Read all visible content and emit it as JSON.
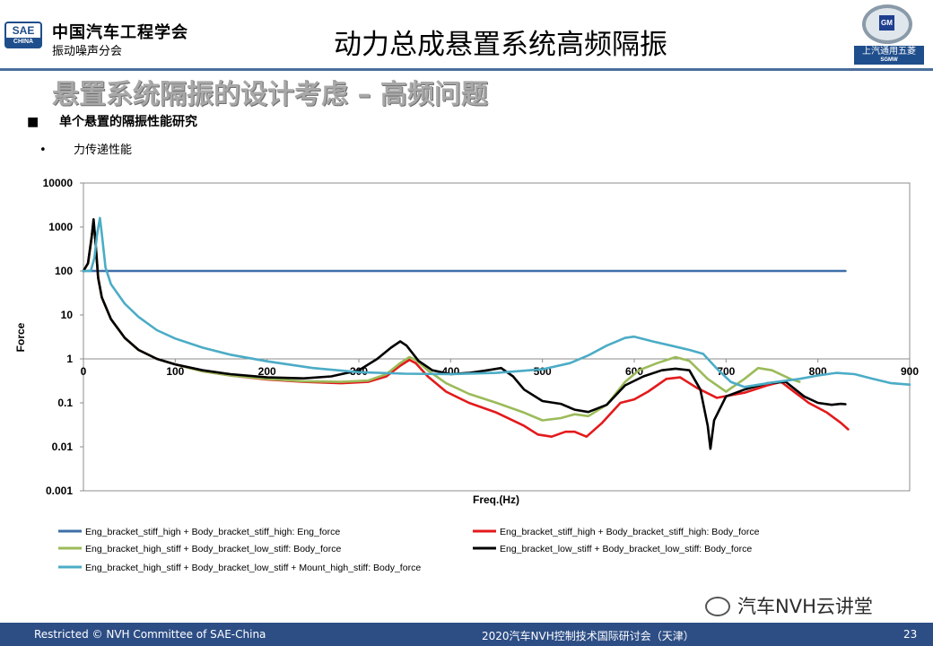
{
  "header": {
    "logo_top": "SAE",
    "logo_bottom": "CHINA",
    "org_name": "中国汽车工程学会",
    "org_subtitle": "振动噪声分会",
    "title": "动力总成悬置系统高频隔振",
    "partner_logo_gm": "GM",
    "partner_logo_cn": "上汽通用五菱",
    "partner_logo_en": "SGMW"
  },
  "section_heading": "悬置系统隔振的设计考虑 – 高频问题",
  "bullets": {
    "level1_mark": "■",
    "level1": "单个悬置的隔振性能研究",
    "level2_mark": "•",
    "level2": "力传递性能"
  },
  "chart_data": {
    "type": "line",
    "xlabel": "Freq.(Hz)",
    "ylabel": "Force",
    "xlim": [
      0,
      900
    ],
    "ylim": [
      0.001,
      10000
    ],
    "y_scale": "log",
    "x_ticks": [
      0,
      100,
      200,
      300,
      400,
      500,
      600,
      700,
      800,
      900
    ],
    "y_tick_labels": [
      "10000",
      "1000",
      "100",
      "10",
      "1",
      "0.1",
      "0.01",
      "0.001"
    ],
    "grid": false,
    "legend_position": "bottom",
    "series": [
      {
        "name": "Eng_bracket_stiff_high + Body_bracket_stiff_high: Eng_force",
        "color": "#3e6fa8",
        "points": [
          [
            0,
            100
          ],
          [
            15,
            100
          ],
          [
            830,
            100
          ]
        ]
      },
      {
        "name": "Eng_bracket_stiff_high + Body_bracket_stiff_high: Body_force",
        "color": "#e31a1c",
        "points": [
          [
            0,
            100
          ],
          [
            5,
            150
          ],
          [
            9,
            600
          ],
          [
            11,
            1300
          ],
          [
            13,
            500
          ],
          [
            16,
            70
          ],
          [
            20,
            25
          ],
          [
            30,
            8
          ],
          [
            45,
            3
          ],
          [
            60,
            1.6
          ],
          [
            80,
            1.0
          ],
          [
            100,
            0.75
          ],
          [
            130,
            0.52
          ],
          [
            160,
            0.42
          ],
          [
            200,
            0.34
          ],
          [
            240,
            0.3
          ],
          [
            280,
            0.28
          ],
          [
            310,
            0.3
          ],
          [
            330,
            0.4
          ],
          [
            345,
            0.7
          ],
          [
            355,
            0.95
          ],
          [
            362,
            0.8
          ],
          [
            375,
            0.4
          ],
          [
            395,
            0.18
          ],
          [
            420,
            0.1
          ],
          [
            450,
            0.06
          ],
          [
            480,
            0.03
          ],
          [
            495,
            0.019
          ],
          [
            510,
            0.017
          ],
          [
            525,
            0.022
          ],
          [
            535,
            0.022
          ],
          [
            548,
            0.017
          ],
          [
            565,
            0.035
          ],
          [
            585,
            0.1
          ],
          [
            600,
            0.12
          ],
          [
            615,
            0.18
          ],
          [
            635,
            0.35
          ],
          [
            650,
            0.38
          ],
          [
            668,
            0.22
          ],
          [
            690,
            0.13
          ],
          [
            720,
            0.17
          ],
          [
            745,
            0.25
          ],
          [
            760,
            0.3
          ],
          [
            790,
            0.1
          ],
          [
            810,
            0.06
          ],
          [
            825,
            0.035
          ],
          [
            833,
            0.025
          ]
        ]
      },
      {
        "name": "Eng_bracket_high_stiff + Body_bracket_low_stiff: Body_force",
        "color": "#9bbb59",
        "points": [
          [
            0,
            100
          ],
          [
            5,
            150
          ],
          [
            9,
            600
          ],
          [
            11,
            1300
          ],
          [
            13,
            500
          ],
          [
            16,
            70
          ],
          [
            20,
            25
          ],
          [
            30,
            8
          ],
          [
            45,
            3
          ],
          [
            60,
            1.6
          ],
          [
            80,
            1.0
          ],
          [
            100,
            0.75
          ],
          [
            130,
            0.52
          ],
          [
            160,
            0.42
          ],
          [
            200,
            0.35
          ],
          [
            240,
            0.31
          ],
          [
            280,
            0.3
          ],
          [
            310,
            0.32
          ],
          [
            330,
            0.45
          ],
          [
            345,
            0.8
          ],
          [
            355,
            1.1
          ],
          [
            362,
            0.95
          ],
          [
            375,
            0.55
          ],
          [
            395,
            0.28
          ],
          [
            420,
            0.16
          ],
          [
            450,
            0.1
          ],
          [
            480,
            0.06
          ],
          [
            500,
            0.04
          ],
          [
            520,
            0.045
          ],
          [
            535,
            0.055
          ],
          [
            550,
            0.05
          ],
          [
            570,
            0.09
          ],
          [
            590,
            0.3
          ],
          [
            605,
            0.55
          ],
          [
            625,
            0.8
          ],
          [
            645,
            1.1
          ],
          [
            660,
            0.9
          ],
          [
            680,
            0.35
          ],
          [
            700,
            0.18
          ],
          [
            720,
            0.35
          ],
          [
            735,
            0.62
          ],
          [
            750,
            0.55
          ],
          [
            770,
            0.35
          ],
          [
            780,
            0.3
          ]
        ]
      },
      {
        "name": "Eng_bracket_low_stiff + Body_bracket_low_stiff: Body_force",
        "color": "#000000",
        "points": [
          [
            0,
            100
          ],
          [
            5,
            150
          ],
          [
            9,
            600
          ],
          [
            11,
            1500
          ],
          [
            13,
            500
          ],
          [
            16,
            70
          ],
          [
            20,
            25
          ],
          [
            30,
            8
          ],
          [
            45,
            3
          ],
          [
            60,
            1.6
          ],
          [
            80,
            1.0
          ],
          [
            100,
            0.75
          ],
          [
            130,
            0.55
          ],
          [
            160,
            0.45
          ],
          [
            200,
            0.38
          ],
          [
            240,
            0.36
          ],
          [
            270,
            0.4
          ],
          [
            300,
            0.55
          ],
          [
            320,
            1.0
          ],
          [
            335,
            1.8
          ],
          [
            345,
            2.5
          ],
          [
            352,
            2.0
          ],
          [
            365,
            0.9
          ],
          [
            380,
            0.55
          ],
          [
            400,
            0.45
          ],
          [
            420,
            0.48
          ],
          [
            440,
            0.55
          ],
          [
            455,
            0.62
          ],
          [
            468,
            0.4
          ],
          [
            480,
            0.2
          ],
          [
            500,
            0.11
          ],
          [
            520,
            0.095
          ],
          [
            535,
            0.07
          ],
          [
            550,
            0.062
          ],
          [
            570,
            0.09
          ],
          [
            590,
            0.25
          ],
          [
            610,
            0.4
          ],
          [
            630,
            0.55
          ],
          [
            645,
            0.6
          ],
          [
            660,
            0.55
          ],
          [
            672,
            0.2
          ],
          [
            680,
            0.03
          ],
          [
            683,
            0.009
          ],
          [
            687,
            0.04
          ],
          [
            700,
            0.14
          ],
          [
            720,
            0.2
          ],
          [
            745,
            0.28
          ],
          [
            765,
            0.3
          ],
          [
            785,
            0.14
          ],
          [
            800,
            0.1
          ],
          [
            815,
            0.09
          ],
          [
            825,
            0.095
          ],
          [
            830,
            0.093
          ]
        ]
      },
      {
        "name": "Eng_bracket_high_stiff + Body_bracket_low_stiff + Mount_high_stiff: Body_force",
        "color": "#4bacc6",
        "points": [
          [
            0,
            100
          ],
          [
            8,
            100
          ],
          [
            12,
            200
          ],
          [
            15,
            700
          ],
          [
            18,
            1600
          ],
          [
            20,
            700
          ],
          [
            24,
            120
          ],
          [
            30,
            50
          ],
          [
            45,
            18
          ],
          [
            60,
            9
          ],
          [
            80,
            4.5
          ],
          [
            100,
            2.9
          ],
          [
            130,
            1.8
          ],
          [
            160,
            1.25
          ],
          [
            200,
            0.88
          ],
          [
            250,
            0.62
          ],
          [
            300,
            0.5
          ],
          [
            350,
            0.46
          ],
          [
            400,
            0.45
          ],
          [
            450,
            0.48
          ],
          [
            500,
            0.58
          ],
          [
            530,
            0.8
          ],
          [
            550,
            1.2
          ],
          [
            570,
            2.0
          ],
          [
            590,
            3.0
          ],
          [
            600,
            3.2
          ],
          [
            620,
            2.5
          ],
          [
            640,
            2.0
          ],
          [
            660,
            1.6
          ],
          [
            675,
            1.3
          ],
          [
            690,
            0.6
          ],
          [
            705,
            0.3
          ],
          [
            720,
            0.23
          ],
          [
            750,
            0.29
          ],
          [
            780,
            0.35
          ],
          [
            800,
            0.42
          ],
          [
            820,
            0.48
          ],
          [
            840,
            0.45
          ],
          [
            860,
            0.35
          ],
          [
            880,
            0.28
          ],
          [
            900,
            0.26
          ]
        ]
      }
    ]
  },
  "watermark": "汽车NVH云讲堂",
  "footer": {
    "left": "Restricted © NVH Committee of SAE-China",
    "center": "2020汽车NVH控制技术国际研讨会（天津）",
    "page": "23"
  }
}
